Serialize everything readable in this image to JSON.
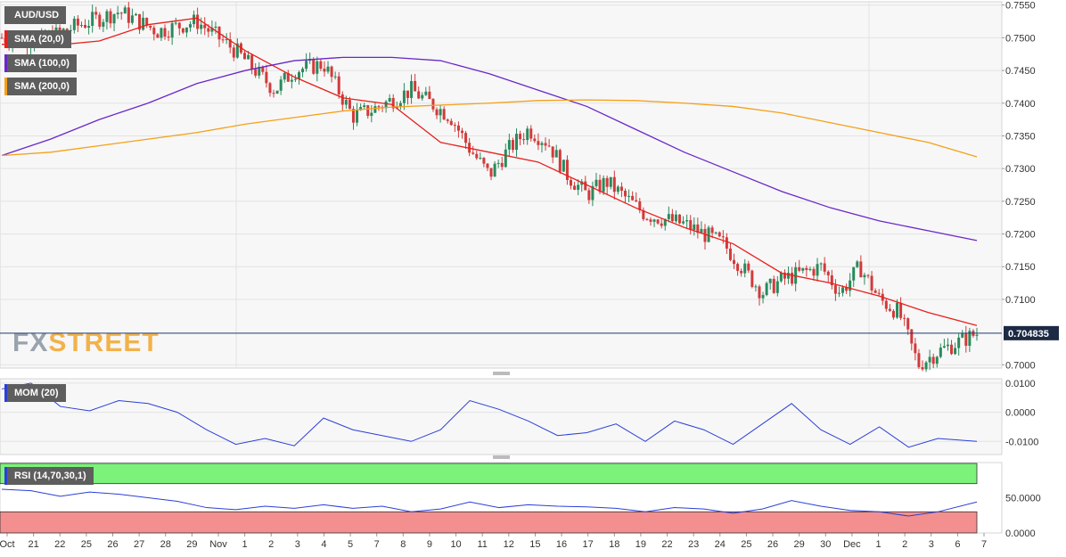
{
  "legend": {
    "symbol": "AUD/USD",
    "sma20": "SMA (20,0)",
    "sma100": "SMA (100,0)",
    "sma200": "SMA (200,0)",
    "mom": "MOM (20)",
    "rsi": "RSI (14,70,30,1)"
  },
  "watermark": {
    "part1": "FX",
    "part2": "STREET"
  },
  "current_price": "0.704835",
  "colors": {
    "sma20": "#e8201c",
    "sma100": "#6a27c9",
    "sma200": "#f5a018",
    "up": "#2a8a5c",
    "down": "#d23a3a",
    "mom_line": "#2b3fd8",
    "rsi_over": "#7cf27a",
    "rsi_under": "#f48f8f",
    "price_line": "#1f3a6b"
  },
  "chart_data": [
    {
      "type": "candlestick",
      "title": "AUD/USD",
      "ylim": [
        0.6995,
        0.7555
      ],
      "y_ticks": [
        "0.7550",
        "0.7500",
        "0.7450",
        "0.7400",
        "0.7350",
        "0.7300",
        "0.7250",
        "0.7200",
        "0.7150",
        "0.7100",
        "0.7000"
      ],
      "x_ticks": [
        "Oct",
        "21",
        "22",
        "25",
        "26",
        "27",
        "28",
        "29",
        "Nov",
        "1",
        "2",
        "3",
        "4",
        "5",
        "7",
        "8",
        "9",
        "10",
        "11",
        "12",
        "15",
        "16",
        "17",
        "18",
        "19",
        "22",
        "23",
        "24",
        "25",
        "26",
        "29",
        "30",
        "Dec",
        "1",
        "2",
        "3",
        "6",
        "7"
      ],
      "last": 0.704835,
      "series": [
        {
          "name": "SMA (20,0)",
          "x": [
            0,
            0.05,
            0.1,
            0.15,
            0.2,
            0.25,
            0.3,
            0.35,
            0.4,
            0.45,
            0.5,
            0.55,
            0.6,
            0.65,
            0.7,
            0.75,
            0.8,
            0.85,
            0.9,
            0.95,
            1.0
          ],
          "values": [
            0.749,
            0.7488,
            0.7495,
            0.752,
            0.753,
            0.748,
            0.744,
            0.7408,
            0.7398,
            0.734,
            0.7325,
            0.731,
            0.7275,
            0.724,
            0.721,
            0.7185,
            0.714,
            0.7125,
            0.7105,
            0.708,
            0.706
          ]
        },
        {
          "name": "SMA (100,0)",
          "x": [
            0,
            0.05,
            0.1,
            0.15,
            0.2,
            0.25,
            0.3,
            0.35,
            0.4,
            0.45,
            0.5,
            0.55,
            0.6,
            0.65,
            0.7,
            0.75,
            0.8,
            0.85,
            0.9,
            0.95,
            1.0
          ],
          "values": [
            0.732,
            0.7345,
            0.7375,
            0.74,
            0.743,
            0.745,
            0.7465,
            0.747,
            0.747,
            0.7465,
            0.7445,
            0.742,
            0.7395,
            0.736,
            0.7325,
            0.7295,
            0.7265,
            0.724,
            0.722,
            0.7205,
            0.719
          ]
        },
        {
          "name": "SMA (200,0)",
          "x": [
            0,
            0.05,
            0.1,
            0.15,
            0.2,
            0.25,
            0.3,
            0.35,
            0.4,
            0.45,
            0.5,
            0.55,
            0.6,
            0.65,
            0.7,
            0.75,
            0.8,
            0.85,
            0.9,
            0.95,
            1.0
          ],
          "values": [
            0.732,
            0.7325,
            0.7335,
            0.7345,
            0.7355,
            0.7368,
            0.7378,
            0.7388,
            0.7394,
            0.7397,
            0.74,
            0.7404,
            0.7405,
            0.7404,
            0.74,
            0.7395,
            0.7385,
            0.737,
            0.7355,
            0.734,
            0.7318
          ]
        }
      ],
      "close": {
        "x": [
          0,
          0.04,
          0.08,
          0.12,
          0.16,
          0.2,
          0.24,
          0.28,
          0.3,
          0.33,
          0.36,
          0.38,
          0.42,
          0.46,
          0.48,
          0.5,
          0.52,
          0.54,
          0.56,
          0.58,
          0.6,
          0.62,
          0.66,
          0.7,
          0.74,
          0.78,
          0.8,
          0.84,
          0.86,
          0.88,
          0.9,
          0.92,
          0.94,
          0.96,
          1.0
        ],
        "values": [
          0.75,
          0.7495,
          0.752,
          0.754,
          0.751,
          0.7525,
          0.748,
          0.742,
          0.745,
          0.746,
          0.738,
          0.739,
          0.742,
          0.738,
          0.733,
          0.729,
          0.733,
          0.736,
          0.734,
          0.729,
          0.726,
          0.728,
          0.723,
          0.7215,
          0.7185,
          0.711,
          0.713,
          0.715,
          0.711,
          0.715,
          0.71,
          0.708,
          0.7,
          0.702,
          0.7048
        ]
      }
    },
    {
      "type": "line",
      "title": "MOM (20)",
      "ylim": [
        -0.0145,
        0.0115
      ],
      "y_ticks": [
        "0.0100",
        "0.0000",
        "-0.0100"
      ],
      "x": [
        0,
        0.03,
        0.06,
        0.09,
        0.12,
        0.15,
        0.18,
        0.21,
        0.24,
        0.27,
        0.3,
        0.33,
        0.36,
        0.39,
        0.42,
        0.45,
        0.48,
        0.51,
        0.54,
        0.57,
        0.6,
        0.63,
        0.66,
        0.69,
        0.72,
        0.75,
        0.78,
        0.81,
        0.84,
        0.87,
        0.9,
        0.93,
        0.96,
        1.0
      ],
      "values": [
        0.008,
        0.01,
        0.002,
        0.0005,
        0.004,
        0.003,
        0.0,
        -0.006,
        -0.011,
        -0.009,
        -0.0115,
        -0.002,
        -0.006,
        -0.008,
        -0.01,
        -0.006,
        0.004,
        0.001,
        -0.003,
        -0.008,
        -0.007,
        -0.004,
        -0.01,
        -0.003,
        -0.006,
        -0.011,
        -0.004,
        0.003,
        -0.006,
        -0.011,
        -0.005,
        -0.012,
        -0.009,
        -0.01
      ]
    },
    {
      "type": "line",
      "title": "RSI (14,70,30,1)",
      "ylim": [
        0,
        100
      ],
      "y_ticks": [
        "50.0000",
        "0.0000"
      ],
      "bands": {
        "over": 70,
        "under": 30
      },
      "x": [
        0,
        0.03,
        0.06,
        0.09,
        0.12,
        0.15,
        0.18,
        0.21,
        0.24,
        0.27,
        0.3,
        0.33,
        0.36,
        0.39,
        0.42,
        0.45,
        0.48,
        0.51,
        0.54,
        0.57,
        0.6,
        0.63,
        0.66,
        0.69,
        0.72,
        0.75,
        0.78,
        0.81,
        0.84,
        0.87,
        0.9,
        0.93,
        0.96,
        1.0
      ],
      "values": [
        62,
        60,
        52,
        58,
        55,
        50,
        45,
        36,
        33,
        38,
        35,
        40,
        35,
        38,
        30,
        34,
        44,
        36,
        40,
        38,
        37,
        35,
        30,
        36,
        34,
        28,
        34,
        46,
        38,
        32,
        30,
        24,
        30,
        44
      ]
    }
  ]
}
